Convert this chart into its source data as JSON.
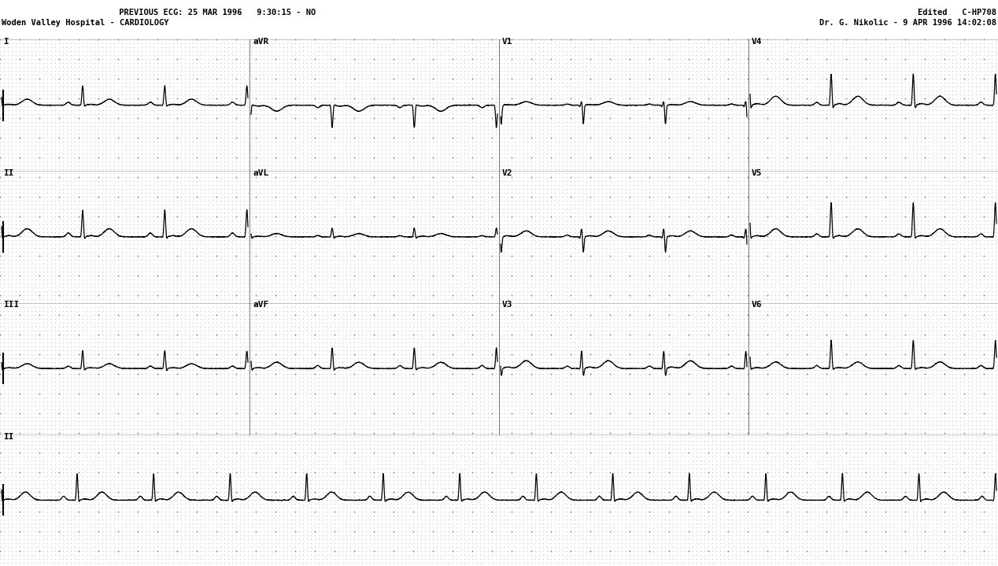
{
  "title_left_1": "     PREVIOUS ECG: 25 MAR 1996   9:30:15 - NO",
  "title_left_2": "Woden Valley Hospital - CARDIOLOGY",
  "title_right_1": "Edited   C-HP708",
  "title_right_2": "Dr. G. Nikolic - 9 APR 1996 14:02:08",
  "bg_color": "#ffffff",
  "grid_minor_color": "#bbbbbb",
  "grid_major_color": "#888888",
  "line_color": "#000000",
  "text_color": "#000000",
  "fig_width": 12.68,
  "fig_height": 7.19,
  "dpi": 100,
  "row_leads": [
    [
      "I",
      "aVR",
      "V1",
      "V4"
    ],
    [
      "II",
      "aVL",
      "V2",
      "V5"
    ],
    [
      "III",
      "aVF",
      "V3",
      "V6"
    ],
    [
      "II",
      "II",
      "II",
      "II"
    ]
  ],
  "lead_labels_display": [
    [
      "I",
      "aVR",
      "V1",
      "V4"
    ],
    [
      "II",
      "aVL",
      "V2",
      "V5"
    ],
    [
      "III",
      "aVF",
      "V3",
      "V6"
    ],
    [
      "II",
      "",
      "",
      ""
    ]
  ],
  "lead_params": {
    "I": {
      "p": 0.1,
      "q": -0.03,
      "r": 0.65,
      "s": -0.07,
      "t": 0.2,
      "st": 0.03
    },
    "II": {
      "p": 0.13,
      "q": -0.04,
      "r": 0.9,
      "s": -0.1,
      "t": 0.27,
      "st": 0.04
    },
    "III": {
      "p": 0.08,
      "q": -0.03,
      "r": 0.6,
      "s": -0.1,
      "t": 0.16,
      "st": 0.03
    },
    "aVR": {
      "p": -0.08,
      "q": 0.04,
      "r": -0.75,
      "s": 0.05,
      "t": -0.2,
      "st": -0.03
    },
    "aVL": {
      "p": 0.04,
      "q": -0.02,
      "r": 0.3,
      "s": -0.07,
      "t": 0.11,
      "st": 0.02
    },
    "aVF": {
      "p": 0.1,
      "q": -0.04,
      "r": 0.7,
      "s": -0.1,
      "t": 0.21,
      "st": 0.03
    },
    "V1": {
      "p": 0.04,
      "q": -0.06,
      "r": 0.15,
      "s": -0.65,
      "t": 0.12,
      "st": 0.02
    },
    "V2": {
      "p": 0.06,
      "q": -0.07,
      "r": 0.3,
      "s": -0.55,
      "t": 0.2,
      "st": 0.04
    },
    "V3": {
      "p": 0.08,
      "q": -0.05,
      "r": 0.6,
      "s": -0.3,
      "t": 0.26,
      "st": 0.05
    },
    "V4": {
      "p": 0.1,
      "q": -0.04,
      "r": 1.05,
      "s": -0.16,
      "t": 0.3,
      "st": 0.05
    },
    "V5": {
      "p": 0.1,
      "q": -0.04,
      "r": 1.15,
      "s": -0.12,
      "t": 0.27,
      "st": 0.04
    },
    "V6": {
      "p": 0.1,
      "q": -0.04,
      "r": 0.95,
      "s": -0.08,
      "t": 0.22,
      "st": 0.03
    }
  }
}
